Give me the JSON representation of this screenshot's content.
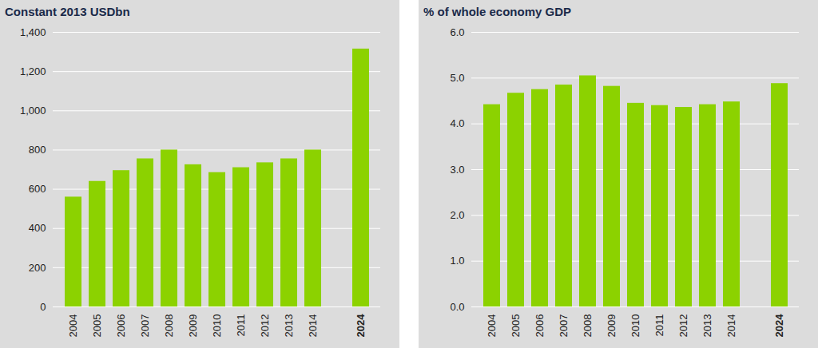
{
  "chart_data": [
    {
      "type": "bar",
      "title": "Constant 2013 USDbn",
      "categories": [
        "2004",
        "2005",
        "2006",
        "2007",
        "2008",
        "2009",
        "2010",
        "2011",
        "2012",
        "2013",
        "2014",
        null,
        "2024"
      ],
      "values": [
        560,
        640,
        695,
        755,
        800,
        725,
        685,
        710,
        735,
        755,
        800,
        null,
        1315
      ],
      "color": "#8cd200",
      "ylim": [
        0,
        1400
      ],
      "yticks": [
        0,
        200,
        400,
        600,
        800,
        {
          "value": 1000,
          "label": "1,000"
        },
        {
          "value": 1200,
          "label": "1,200"
        },
        {
          "value": 1400,
          "label": "1,400"
        }
      ],
      "grid": true
    },
    {
      "type": "bar",
      "title": "% of whole economy GDP",
      "categories": [
        "2004",
        "2005",
        "2006",
        "2007",
        "2008",
        "2009",
        "2010",
        "2011",
        "2012",
        "2013",
        "2014",
        null,
        "2024"
      ],
      "values": [
        4.42,
        4.67,
        4.75,
        4.85,
        5.05,
        4.82,
        4.45,
        4.4,
        4.36,
        4.42,
        4.48,
        null,
        4.88
      ],
      "color": "#8cd200",
      "ylim": [
        0,
        6
      ],
      "yticks": [
        {
          "value": 0,
          "label": "0.0"
        },
        {
          "value": 1,
          "label": "1.0"
        },
        {
          "value": 2,
          "label": "2.0"
        },
        {
          "value": 3,
          "label": "3.0"
        },
        {
          "value": 4,
          "label": "4.0"
        },
        {
          "value": 5,
          "label": "5.0"
        },
        {
          "value": 6,
          "label": "6.0"
        }
      ],
      "grid": true
    }
  ]
}
